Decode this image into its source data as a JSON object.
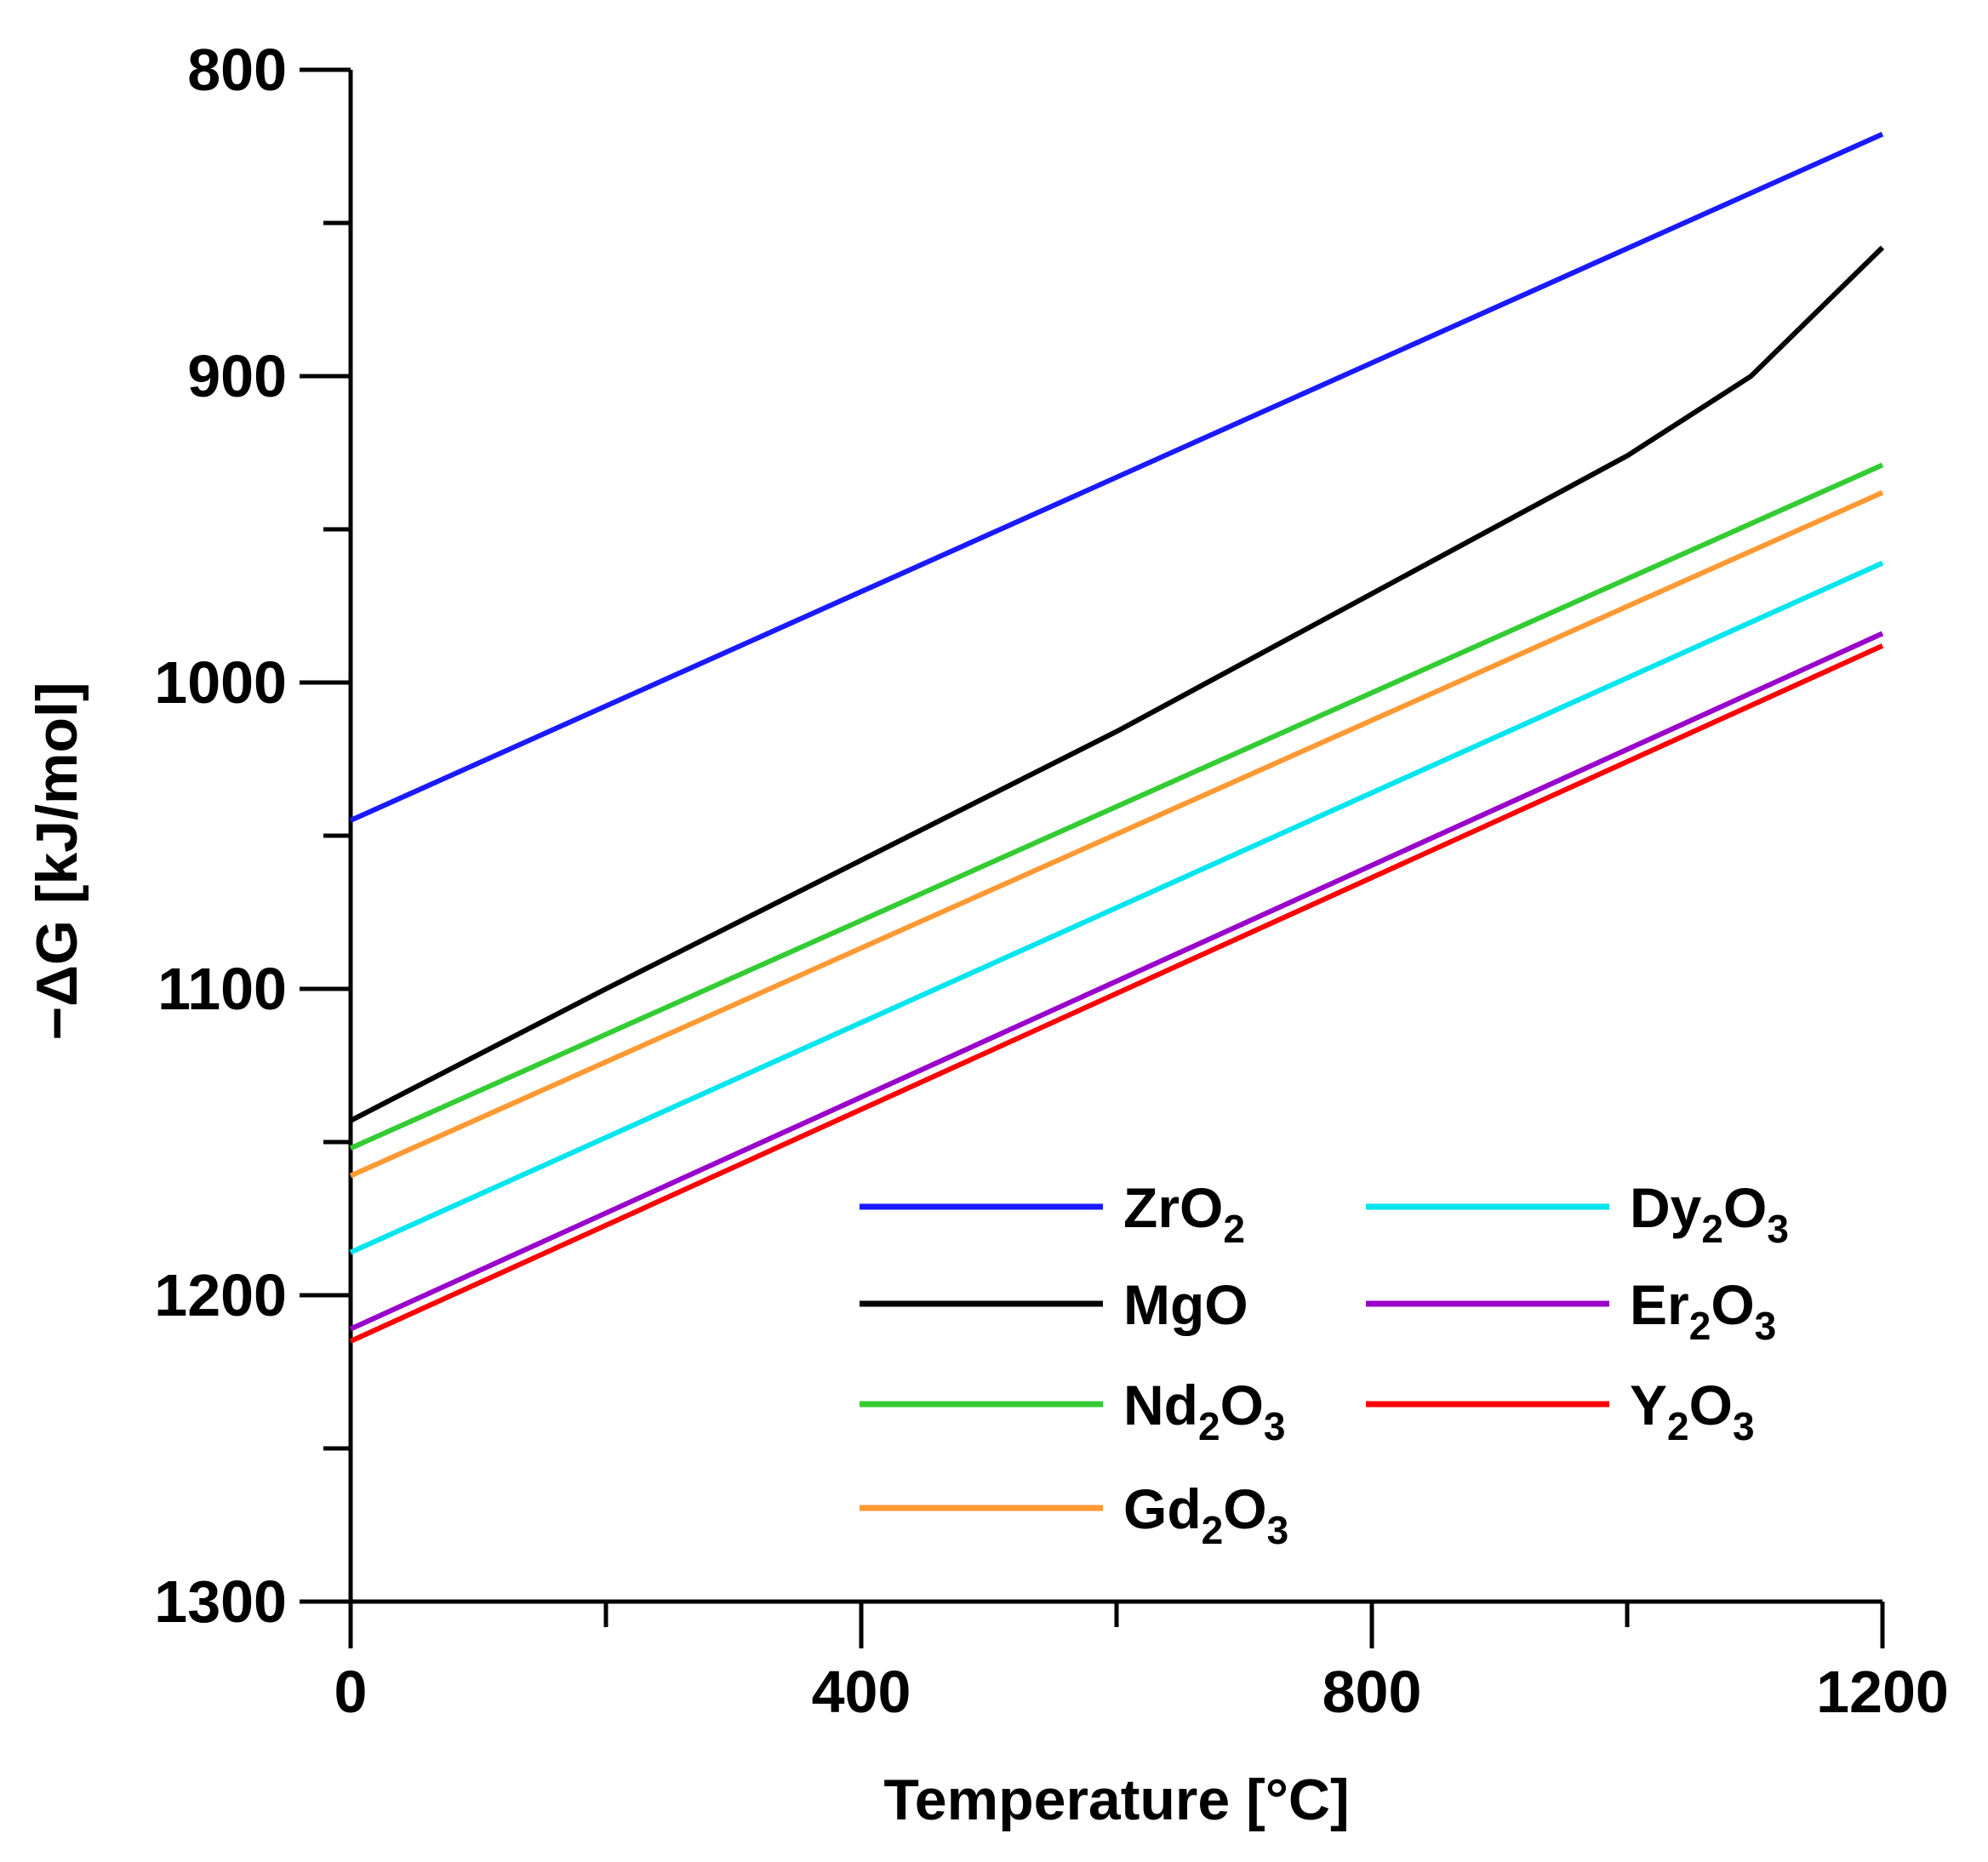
{
  "chart_data": {
    "type": "line",
    "title": "",
    "xlabel": "Temperature [°C]",
    "ylabel": "−ΔG [kJ/mol]",
    "xlim": [
      0,
      1200
    ],
    "ylim": [
      800,
      1300
    ],
    "y_inverted": true,
    "x_ticks": [
      0,
      400,
      800,
      1200
    ],
    "y_ticks": [
      800,
      900,
      1000,
      1100,
      1200,
      1300
    ],
    "grid": false,
    "legend_position": "bottom-right",
    "legend_columns": 2,
    "series": [
      {
        "name": "ZrO2",
        "label_main": "ZrO",
        "label_parts": [
          [
            "ZrO",
            ""
          ],
          [
            "2",
            "sub"
          ]
        ],
        "color": "#1a1aff",
        "x": [
          0,
          1200
        ],
        "y": [
          1045,
          821
        ]
      },
      {
        "name": "MgO",
        "label_parts": [
          [
            "MgO",
            ""
          ]
        ],
        "color": "#000000",
        "x": [
          0,
          200,
          400,
          600,
          800,
          1000,
          1097,
          1200
        ],
        "y": [
          1143,
          1100,
          1058,
          1016,
          971,
          926,
          900,
          858
        ]
      },
      {
        "name": "Nd2O3",
        "label_parts": [
          [
            "Nd",
            ""
          ],
          [
            "2",
            "sub"
          ],
          [
            "O",
            ""
          ],
          [
            "3",
            "sub"
          ]
        ],
        "color": "#33cc33",
        "x": [
          0,
          1200
        ],
        "y": [
          1152,
          929
        ]
      },
      {
        "name": "Gd2O3",
        "label_parts": [
          [
            "Gd",
            ""
          ],
          [
            "2",
            "sub"
          ],
          [
            "O",
            ""
          ],
          [
            "3",
            "sub"
          ]
        ],
        "color": "#ff9933",
        "x": [
          0,
          1200
        ],
        "y": [
          1161,
          938
        ]
      },
      {
        "name": "Dy2O3",
        "label_parts": [
          [
            "Dy",
            ""
          ],
          [
            "2",
            "sub"
          ],
          [
            "O",
            ""
          ],
          [
            "3",
            "sub"
          ]
        ],
        "color": "#00e5ee",
        "x": [
          0,
          1200
        ],
        "y": [
          1186,
          961
        ]
      },
      {
        "name": "Er2O3",
        "label_parts": [
          [
            "Er",
            ""
          ],
          [
            "2",
            "sub"
          ],
          [
            "O",
            ""
          ],
          [
            "3",
            "sub"
          ]
        ],
        "color": "#9900cc",
        "x": [
          0,
          1200
        ],
        "y": [
          1211,
          984
        ]
      },
      {
        "name": "Y2O3",
        "label_parts": [
          [
            "Y",
            ""
          ],
          [
            "2",
            "sub"
          ],
          [
            "O",
            ""
          ],
          [
            "3",
            "sub"
          ]
        ],
        "color": "#ff0000",
        "x": [
          0,
          1200
        ],
        "y": [
          1215,
          988
        ]
      }
    ]
  }
}
